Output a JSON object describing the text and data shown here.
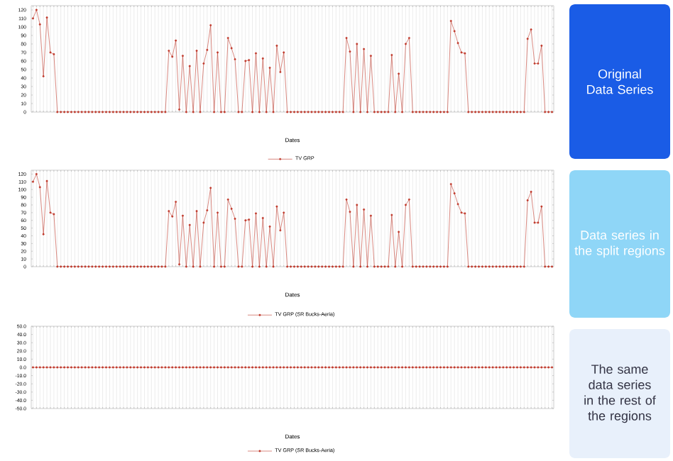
{
  "chart_data": [
    {
      "type": "line",
      "xlabel": "Dates",
      "categories": [
        null,
        null,
        null,
        null,
        null,
        null,
        null,
        null,
        null,
        null,
        null,
        null,
        null,
        null,
        null,
        null,
        null,
        null,
        null,
        null,
        null,
        null,
        null,
        null,
        null,
        null,
        null,
        null,
        null,
        null,
        null,
        null,
        null,
        null,
        null,
        null,
        null,
        null,
        null,
        null,
        null,
        null,
        null,
        null,
        null,
        null,
        null,
        null,
        null,
        null,
        null,
        null,
        null,
        null,
        null,
        null,
        null,
        null,
        null,
        null,
        null,
        null,
        null,
        null,
        null,
        null,
        null,
        null,
        null,
        null,
        null,
        null,
        null,
        null,
        null,
        null,
        null,
        null,
        null,
        null,
        null,
        null,
        null,
        null,
        null,
        null,
        null,
        null,
        null,
        null,
        null,
        null,
        null,
        null,
        null,
        null,
        null,
        null,
        null,
        null,
        null,
        null,
        null,
        null,
        null,
        null,
        null,
        null,
        null,
        null,
        null,
        null,
        null,
        null,
        null,
        null,
        null,
        null,
        null,
        null,
        null,
        null,
        null,
        null,
        null,
        null,
        null,
        null,
        null,
        null,
        null,
        null,
        null,
        null,
        null,
        null,
        null,
        null,
        null,
        null,
        null,
        null,
        null,
        null,
        null,
        null,
        null,
        null,
        null,
        null
      ],
      "series": [
        {
          "name": "TV GRP",
          "color": "#c0392b",
          "values": [
            110,
            120,
            103,
            42,
            111,
            70,
            68,
            0,
            0,
            0,
            0,
            0,
            0,
            0,
            0,
            0,
            0,
            0,
            0,
            0,
            0,
            0,
            0,
            0,
            0,
            0,
            0,
            0,
            0,
            0,
            0,
            0,
            0,
            0,
            0,
            0,
            0,
            0,
            0,
            72,
            65,
            84,
            3,
            66,
            0,
            54,
            0,
            72,
            0,
            57,
            73,
            102,
            0,
            70,
            0,
            0,
            87,
            75,
            62,
            0,
            0,
            60,
            61,
            0,
            69,
            0,
            63,
            0,
            52,
            0,
            78,
            47,
            70,
            0,
            0,
            0,
            0,
            0,
            0,
            0,
            0,
            0,
            0,
            0,
            0,
            0,
            0,
            0,
            0,
            0,
            87,
            71,
            0,
            80,
            0,
            74,
            0,
            66,
            0,
            0,
            0,
            0,
            0,
            67,
            0,
            45,
            0,
            80,
            87,
            0,
            0,
            0,
            0,
            0,
            0,
            0,
            0,
            0,
            0,
            0,
            107,
            95,
            81,
            70,
            69,
            0,
            0,
            0,
            0,
            0,
            0,
            0,
            0,
            0,
            0,
            0,
            0,
            0,
            0,
            0,
            0,
            0,
            86,
            97,
            57,
            57,
            78,
            0,
            0,
            0
          ]
        }
      ],
      "ylim": [
        0,
        125
      ],
      "yticks": [
        0,
        10,
        20,
        30,
        40,
        50,
        60,
        70,
        80,
        90,
        100,
        110,
        120
      ],
      "grid": "x",
      "legend": "bottom",
      "marker": "circle"
    },
    {
      "type": "line",
      "xlabel": "Dates",
      "categories": [
        null,
        null,
        null,
        null,
        null,
        null,
        null,
        null,
        null,
        null,
        null,
        null,
        null,
        null,
        null,
        null,
        null,
        null,
        null,
        null,
        null,
        null,
        null,
        null,
        null,
        null,
        null,
        null,
        null,
        null,
        null,
        null,
        null,
        null,
        null,
        null,
        null,
        null,
        null,
        null,
        null,
        null,
        null,
        null,
        null,
        null,
        null,
        null,
        null,
        null,
        null,
        null,
        null,
        null,
        null,
        null,
        null,
        null,
        null,
        null,
        null,
        null,
        null,
        null,
        null,
        null,
        null,
        null,
        null,
        null,
        null,
        null,
        null,
        null,
        null,
        null,
        null,
        null,
        null,
        null,
        null,
        null,
        null,
        null,
        null,
        null,
        null,
        null,
        null,
        null,
        null,
        null,
        null,
        null,
        null,
        null,
        null,
        null,
        null,
        null,
        null,
        null,
        null,
        null,
        null,
        null,
        null,
        null,
        null,
        null,
        null,
        null,
        null,
        null,
        null,
        null,
        null,
        null,
        null,
        null,
        null,
        null,
        null,
        null,
        null,
        null,
        null,
        null,
        null,
        null,
        null,
        null,
        null,
        null,
        null,
        null,
        null,
        null,
        null,
        null,
        null,
        null,
        null,
        null,
        null,
        null,
        null,
        null,
        null,
        null
      ],
      "series": [
        {
          "name": "TV GRP (SR Bucks-Aeria)",
          "color": "#c0392b",
          "values": [
            110,
            120,
            103,
            42,
            111,
            70,
            68,
            0,
            0,
            0,
            0,
            0,
            0,
            0,
            0,
            0,
            0,
            0,
            0,
            0,
            0,
            0,
            0,
            0,
            0,
            0,
            0,
            0,
            0,
            0,
            0,
            0,
            0,
            0,
            0,
            0,
            0,
            0,
            0,
            72,
            65,
            84,
            3,
            66,
            0,
            54,
            0,
            72,
            0,
            57,
            73,
            102,
            0,
            70,
            0,
            0,
            87,
            75,
            62,
            0,
            0,
            60,
            61,
            0,
            69,
            0,
            63,
            0,
            52,
            0,
            78,
            47,
            70,
            0,
            0,
            0,
            0,
            0,
            0,
            0,
            0,
            0,
            0,
            0,
            0,
            0,
            0,
            0,
            0,
            0,
            87,
            71,
            0,
            80,
            0,
            74,
            0,
            66,
            0,
            0,
            0,
            0,
            0,
            67,
            0,
            45,
            0,
            80,
            87,
            0,
            0,
            0,
            0,
            0,
            0,
            0,
            0,
            0,
            0,
            0,
            107,
            95,
            81,
            70,
            69,
            0,
            0,
            0,
            0,
            0,
            0,
            0,
            0,
            0,
            0,
            0,
            0,
            0,
            0,
            0,
            0,
            0,
            86,
            97,
            57,
            57,
            78,
            0,
            0,
            0
          ]
        }
      ],
      "ylim": [
        0,
        125
      ],
      "yticks": [
        0,
        10,
        20,
        30,
        40,
        50,
        60,
        70,
        80,
        90,
        100,
        110,
        120
      ],
      "grid": "x",
      "legend": "bottom",
      "marker": "circle"
    },
    {
      "type": "line",
      "xlabel": "Dates",
      "categories": [
        null,
        null,
        null,
        null,
        null,
        null,
        null,
        null,
        null,
        null,
        null,
        null,
        null,
        null,
        null,
        null,
        null,
        null,
        null,
        null,
        null,
        null,
        null,
        null,
        null,
        null,
        null,
        null,
        null,
        null,
        null,
        null,
        null,
        null,
        null,
        null,
        null,
        null,
        null,
        null,
        null,
        null,
        null,
        null,
        null,
        null,
        null,
        null,
        null,
        null,
        null,
        null,
        null,
        null,
        null,
        null,
        null,
        null,
        null,
        null,
        null,
        null,
        null,
        null,
        null,
        null,
        null,
        null,
        null,
        null,
        null,
        null,
        null,
        null,
        null,
        null,
        null,
        null,
        null,
        null,
        null,
        null,
        null,
        null,
        null,
        null,
        null,
        null,
        null,
        null,
        null,
        null,
        null,
        null,
        null,
        null,
        null,
        null,
        null,
        null,
        null,
        null,
        null,
        null,
        null,
        null,
        null,
        null,
        null,
        null,
        null,
        null,
        null,
        null,
        null,
        null,
        null,
        null,
        null,
        null,
        null,
        null,
        null,
        null,
        null,
        null,
        null,
        null,
        null,
        null,
        null,
        null,
        null,
        null,
        null,
        null,
        null,
        null,
        null,
        null,
        null,
        null,
        null,
        null,
        null,
        null,
        null,
        null,
        null,
        null
      ],
      "series": [
        {
          "name": "TV GRP (SR Bucks-Aeria)",
          "color": "#c0392b",
          "values": [
            0,
            0,
            0,
            0,
            0,
            0,
            0,
            0,
            0,
            0,
            0,
            0,
            0,
            0,
            0,
            0,
            0,
            0,
            0,
            0,
            0,
            0,
            0,
            0,
            0,
            0,
            0,
            0,
            0,
            0,
            0,
            0,
            0,
            0,
            0,
            0,
            0,
            0,
            0,
            0,
            0,
            0,
            0,
            0,
            0,
            0,
            0,
            0,
            0,
            0,
            0,
            0,
            0,
            0,
            0,
            0,
            0,
            0,
            0,
            0,
            0,
            0,
            0,
            0,
            0,
            0,
            0,
            0,
            0,
            0,
            0,
            0,
            0,
            0,
            0,
            0,
            0,
            0,
            0,
            0,
            0,
            0,
            0,
            0,
            0,
            0,
            0,
            0,
            0,
            0,
            0,
            0,
            0,
            0,
            0,
            0,
            0,
            0,
            0,
            0,
            0,
            0,
            0,
            0,
            0,
            0,
            0,
            0,
            0,
            0,
            0,
            0,
            0,
            0,
            0,
            0,
            0,
            0,
            0,
            0,
            0,
            0,
            0,
            0,
            0,
            0,
            0,
            0,
            0,
            0,
            0,
            0,
            0,
            0,
            0,
            0,
            0,
            0,
            0,
            0,
            0,
            0,
            0,
            0,
            0,
            0,
            0,
            0,
            0,
            0
          ]
        }
      ],
      "ylim": [
        -50,
        50
      ],
      "yticks": [
        {
          "value": 50,
          "label": "50.0"
        },
        {
          "value": 40,
          "label": "40.0"
        },
        {
          "value": 30,
          "label": "30.0"
        },
        {
          "value": 20,
          "label": "20.0"
        },
        {
          "value": 10,
          "label": "10.0"
        },
        {
          "value": 0,
          "label": "0.0"
        },
        {
          "value": -10,
          "label": "-10.0"
        },
        {
          "value": -20,
          "label": "-20.0"
        },
        {
          "value": -30,
          "label": "-30.0"
        },
        {
          "value": -40,
          "label": "-40.0"
        },
        {
          "value": -50,
          "label": "-50.0"
        }
      ],
      "grid": "x",
      "legend": "bottom",
      "marker": "circle"
    },
    {
      "type": "other",
      "annotations": [
        "Original Data Series",
        "Data series in the split regions",
        "The same data series in the rest of the regions"
      ],
      "colors": [
        "#1a5ce6",
        "#8fd6f7",
        "#e8f0fb"
      ]
    }
  ]
}
